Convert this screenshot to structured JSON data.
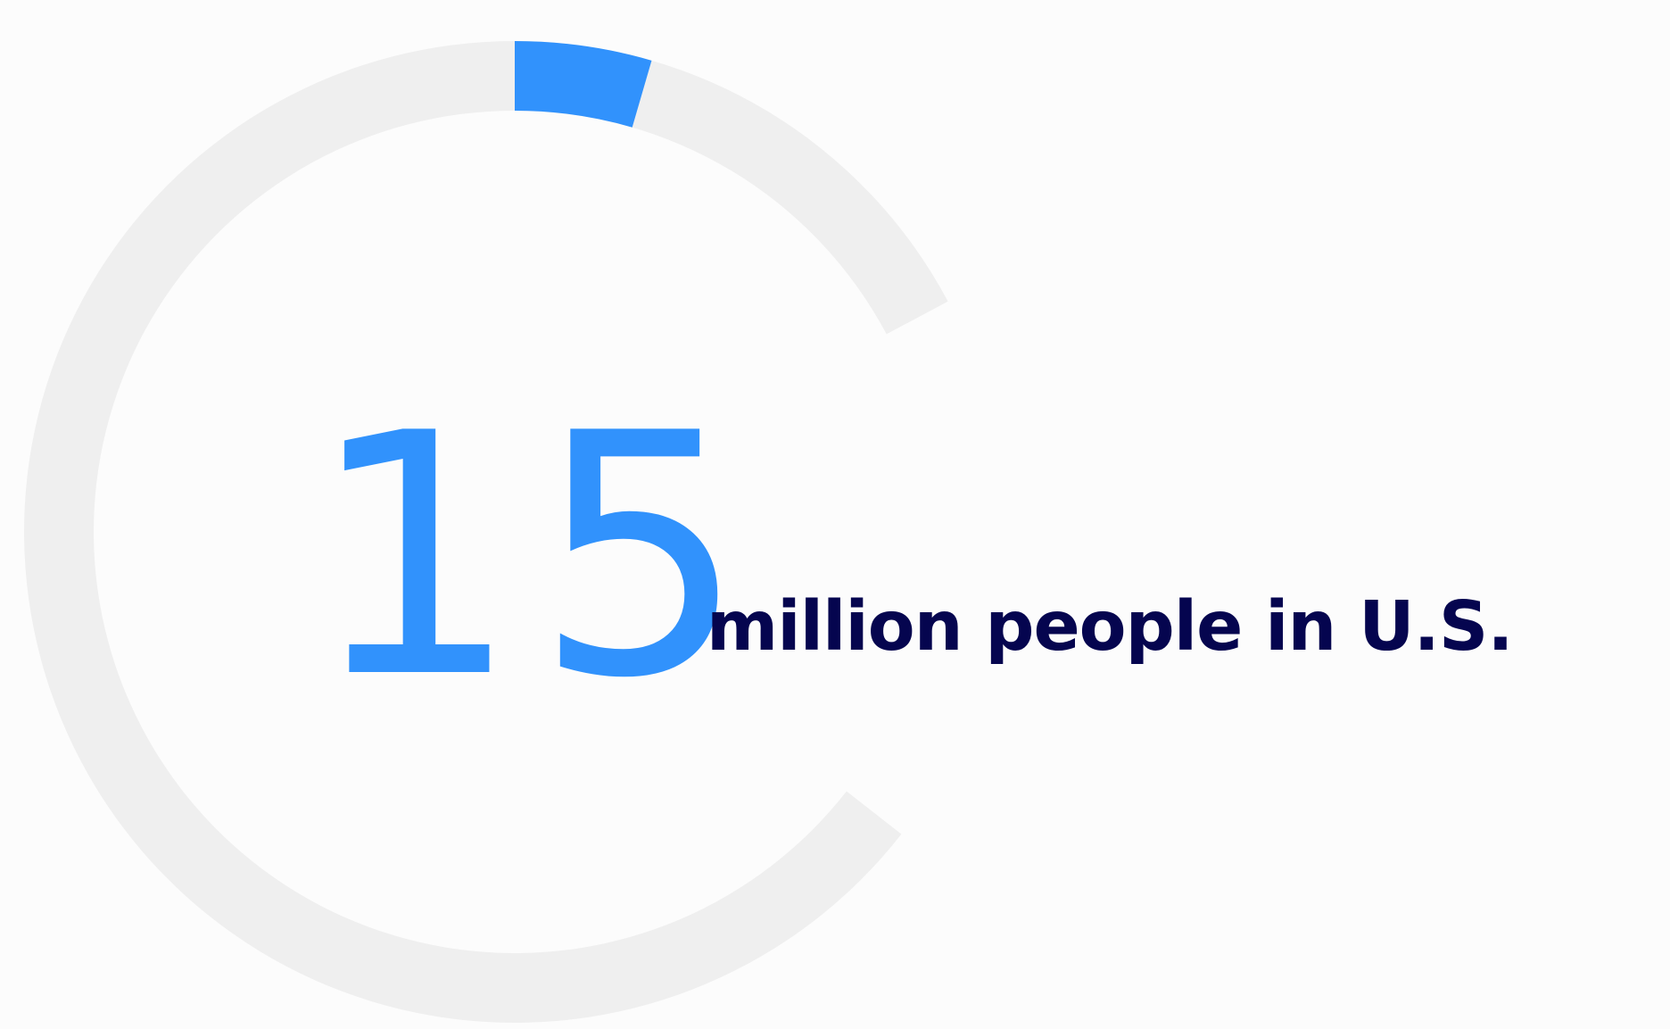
{
  "chart_data": {
    "type": "pie",
    "style": "donut-gauge",
    "value_label": "15",
    "caption": "million people in U.S.",
    "highlight_fraction": 0.045,
    "colors": {
      "accent": "#3192fc",
      "track": "#efefef",
      "caption_text": "#05054f",
      "background": "#fcfcfc"
    }
  }
}
